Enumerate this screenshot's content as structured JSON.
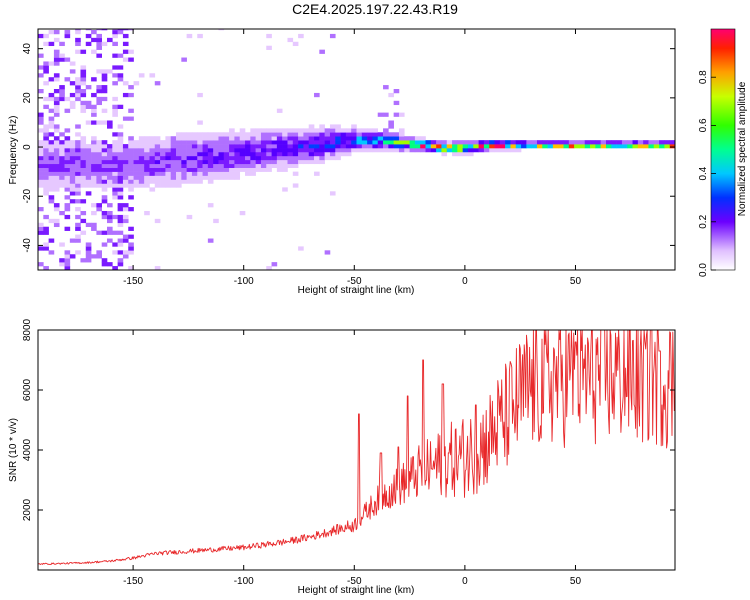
{
  "title": "C2E4.2025.197.22.43.R19",
  "colors": {
    "snr_line": "#e8282a",
    "spectrogram_palette": [
      "#ffffff",
      "#e6c8ff",
      "#b070ff",
      "#7a1aff",
      "#5500ff",
      "#0040ff",
      "#00c8ff",
      "#00ff80",
      "#a0ff00",
      "#ffc000",
      "#ff3000",
      "#ff0060"
    ]
  },
  "chart_data": [
    {
      "type": "heatmap",
      "title": "C2E4.2025.197.22.43.R19",
      "xlabel": "Height of straight line (km)",
      "ylabel": "Frequency (Hz)",
      "xlim": [
        -193,
        95
      ],
      "ylim": [
        -50,
        48
      ],
      "xticks": [
        -150,
        -100,
        -50,
        0,
        50
      ],
      "xtick_labels": [
        "-150",
        "-100",
        "-50",
        "0",
        "50"
      ],
      "yticks": [
        -40,
        -20,
        0,
        20,
        40
      ],
      "ytick_labels": [
        "-40",
        "-20",
        "0",
        "20",
        "40"
      ],
      "colorbar": {
        "label": "Normalized spectral amplitude",
        "range": [
          0,
          1
        ],
        "ticks": [
          0.0,
          0.2,
          0.4,
          0.6,
          0.8
        ],
        "tick_labels": [
          "0.0",
          "0.2",
          "0.4",
          "0.6",
          "0.8"
        ]
      },
      "ridge": {
        "x": [
          -150,
          -130,
          -110,
          -90,
          -70,
          -50,
          -40,
          -30,
          -20,
          -10,
          0,
          10,
          30,
          50,
          70,
          90
        ],
        "center_hz": [
          -8,
          -6,
          -4,
          -2,
          0,
          2,
          2,
          1,
          0,
          -1,
          -1,
          0,
          0,
          0,
          0,
          0
        ],
        "halfwidth_hz": [
          9,
          9,
          8,
          7,
          6,
          4,
          3,
          2.5,
          2,
          1.8,
          1.8,
          1.5,
          1.2,
          1.2,
          1.2,
          1.2
        ],
        "peak_amp": [
          0.25,
          0.3,
          0.32,
          0.35,
          0.42,
          0.5,
          0.55,
          0.7,
          0.85,
          0.9,
          0.92,
          0.95,
          0.9,
          0.9,
          0.92,
          0.9
        ]
      }
    },
    {
      "type": "line",
      "xlabel": "Height of straight line (km)",
      "ylabel": "SNR (10 * v/v)",
      "xlim": [
        -193,
        95
      ],
      "ylim": [
        0,
        8000
      ],
      "xticks": [
        -150,
        -100,
        -50,
        0,
        50
      ],
      "xtick_labels": [
        "-150",
        "-100",
        "-50",
        "0",
        "50"
      ],
      "yticks": [
        2000,
        4000,
        6000,
        8000
      ],
      "ytick_labels": [
        "2000",
        "4000",
        "6000",
        "8000"
      ],
      "series": [
        {
          "x": [
            -193,
            -180,
            -170,
            -160,
            -150,
            -140,
            -130,
            -120,
            -110,
            -100,
            -90,
            -80,
            -70,
            -60,
            -50,
            -45,
            -40,
            -35,
            -30,
            -25,
            -20,
            -15,
            -10,
            -5,
            0,
            5,
            10,
            15,
            20,
            25,
            30,
            40,
            50,
            60,
            70,
            80,
            90,
            95
          ],
          "y": [
            200,
            220,
            250,
            300,
            400,
            550,
            600,
            650,
            700,
            750,
            850,
            950,
            1100,
            1300,
            1500,
            1900,
            2300,
            2600,
            2800,
            3000,
            3300,
            3400,
            3600,
            3700,
            3800,
            4000,
            4300,
            4800,
            5200,
            5700,
            6100,
            6400,
            6500,
            6500,
            6600,
            6500,
            6400,
            6200
          ],
          "spikes": [
            [
              -48,
              5200
            ],
            [
              -38,
              3900
            ],
            [
              -30,
              4100
            ],
            [
              -26,
              5800
            ],
            [
              -19,
              7000
            ],
            [
              -10,
              6200
            ],
            [
              5,
              5500
            ],
            [
              50,
              7600
            ],
            [
              84,
              8000
            ],
            [
              88,
              7300
            ]
          ]
        }
      ]
    }
  ]
}
